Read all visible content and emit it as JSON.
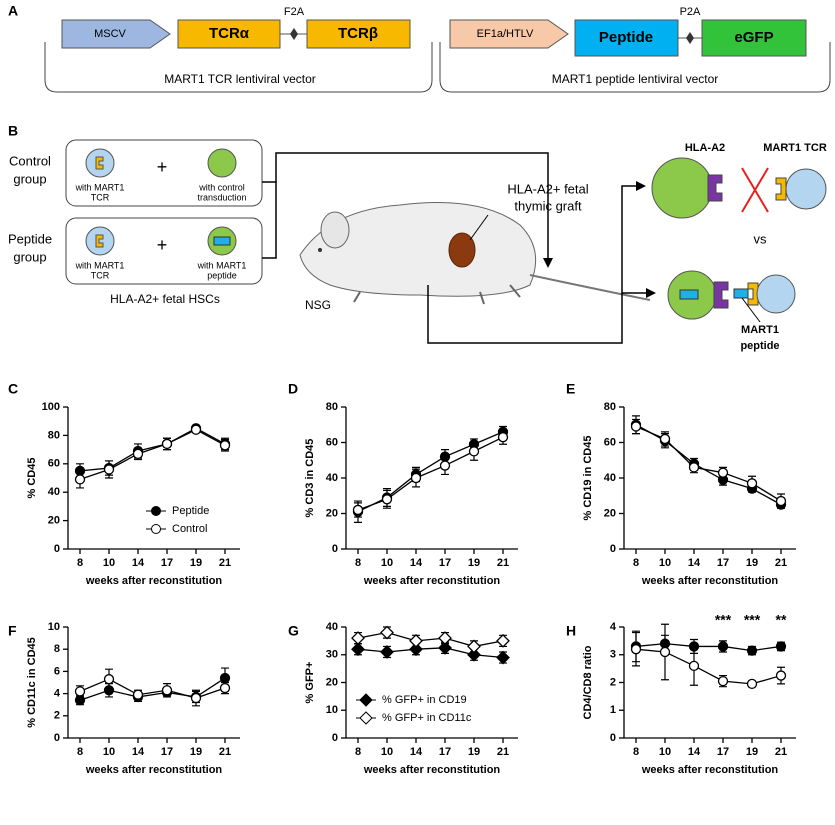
{
  "panel_labels": [
    "A",
    "B",
    "C",
    "D",
    "E",
    "F",
    "G",
    "H"
  ],
  "diagram_a": {
    "left": {
      "promoter": "MSCV",
      "gene1": "TCRα",
      "linker": "F2A",
      "gene2": "TCRβ",
      "caption": "MART1 TCR lentiviral vector"
    },
    "right": {
      "promoter": "EF1a/HTLV",
      "gene1": "Peptide",
      "linker": "P2A",
      "gene2": "eGFP",
      "caption": "MART1 peptide lentiviral vector"
    }
  },
  "diagram_b": {
    "control_group": {
      "label": [
        "Control",
        "group"
      ],
      "cell1": [
        "with MART1",
        "TCR"
      ],
      "plus": "+",
      "cell2": [
        "with control",
        "transduction"
      ]
    },
    "peptide_group": {
      "label": [
        "Peptide",
        "group"
      ],
      "cell1": [
        "with MART1",
        "TCR"
      ],
      "plus": "+",
      "cell2": [
        "with MART1",
        "peptide"
      ]
    },
    "hsc_caption": "HLA-A2+ fetal HSCs",
    "graft_label": [
      "HLA-A2+ fetal",
      "thymic graft"
    ],
    "mouse_label": "NSG",
    "hla_label": "HLA-A2",
    "tcr_label": "MART1 TCR",
    "vs": "vs",
    "peptide_label": [
      "MART1",
      "peptide"
    ]
  },
  "chart_data": [
    {
      "type": "line",
      "marker": "circle",
      "ylabel": "% CD45",
      "xlabel": "weeks after reconstitution",
      "categories": [
        "8",
        "10",
        "14",
        "17",
        "19",
        "21"
      ],
      "ylim": [
        0,
        100
      ],
      "yticks": [
        0,
        20,
        40,
        60,
        80,
        100
      ],
      "legend": "lower right",
      "series": [
        {
          "name": "Peptide",
          "color": "#000000",
          "fill": "#000000",
          "values": [
            55,
            57,
            69,
            74,
            85,
            74
          ],
          "errors": [
            5,
            5,
            5,
            4,
            2,
            4
          ]
        },
        {
          "name": "Control",
          "color": "#000000",
          "fill": "#ffffff",
          "values": [
            49,
            56,
            67,
            74,
            84,
            73
          ],
          "errors": [
            6,
            6,
            4,
            4,
            2,
            4
          ]
        }
      ]
    },
    {
      "type": "line",
      "marker": "circle",
      "ylabel": "% CD3 in CD45",
      "xlabel": "weeks after reconstitution",
      "categories": [
        "8",
        "10",
        "14",
        "17",
        "19",
        "21"
      ],
      "ylim": [
        0,
        80
      ],
      "yticks": [
        0,
        20,
        40,
        60,
        80
      ],
      "series": [
        {
          "color": "#000000",
          "fill": "#000000",
          "values": [
            21,
            29,
            42,
            52,
            59,
            66
          ],
          "errors": [
            6,
            5,
            4,
            4,
            3,
            3
          ]
        },
        {
          "color": "#000000",
          "fill": "#ffffff",
          "values": [
            22,
            28,
            40,
            47,
            55,
            63
          ],
          "errors": [
            4,
            5,
            5,
            5,
            5,
            4
          ]
        }
      ]
    },
    {
      "type": "line",
      "marker": "circle",
      "ylabel": "% CD19 in CD45",
      "xlabel": "weeks after reconstitution",
      "categories": [
        "8",
        "10",
        "14",
        "17",
        "19",
        "21"
      ],
      "ylim": [
        0,
        80
      ],
      "yticks": [
        0,
        20,
        40,
        60,
        80
      ],
      "series": [
        {
          "color": "#000000",
          "fill": "#000000",
          "values": [
            70,
            61,
            48,
            39,
            34,
            25
          ],
          "errors": [
            5,
            4,
            3,
            3,
            2,
            2
          ]
        },
        {
          "color": "#000000",
          "fill": "#ffffff",
          "values": [
            69,
            62,
            46,
            43,
            37,
            27
          ],
          "errors": [
            4,
            4,
            3,
            3,
            4,
            4
          ]
        }
      ]
    },
    {
      "type": "line",
      "marker": "circle",
      "ylabel": "% CD11c in CD45",
      "xlabel": "weeks after reconstitution",
      "categories": [
        "8",
        "10",
        "14",
        "17",
        "19",
        "21"
      ],
      "ylim": [
        0,
        10
      ],
      "yticks": [
        0,
        2,
        4,
        6,
        8,
        10
      ],
      "series": [
        {
          "color": "#000000",
          "fill": "#000000",
          "values": [
            3.4,
            4.3,
            3.7,
            4.1,
            3.7,
            5.4
          ],
          "errors": [
            0.4,
            0.6,
            0.4,
            0.4,
            0.5,
            0.9
          ]
        },
        {
          "color": "#000000",
          "fill": "#ffffff",
          "values": [
            4.2,
            5.3,
            3.9,
            4.3,
            3.6,
            4.5
          ],
          "errors": [
            0.5,
            0.9,
            0.4,
            0.6,
            0.7,
            0.5
          ]
        }
      ]
    },
    {
      "type": "line",
      "marker": "diamond",
      "ylabel": "% GFP+",
      "xlabel": "weeks after reconstitution",
      "categories": [
        "8",
        "10",
        "14",
        "17",
        "19",
        "21"
      ],
      "ylim": [
        0,
        40
      ],
      "yticks": [
        0,
        10,
        20,
        30,
        40
      ],
      "legend": "lower left",
      "series": [
        {
          "name": "% GFP+ in CD19",
          "color": "#000000",
          "fill": "#000000",
          "values": [
            32,
            31,
            32,
            32.5,
            30,
            29
          ],
          "errors": [
            2,
            2,
            2,
            2,
            2,
            2
          ]
        },
        {
          "name": "% GFP+ in CD11c",
          "color": "#000000",
          "fill": "#ffffff",
          "values": [
            36,
            38,
            35,
            36,
            33,
            35
          ],
          "errors": [
            2,
            2,
            2,
            2,
            2,
            2
          ]
        }
      ]
    },
    {
      "type": "line",
      "marker": "circle",
      "ylabel": "CD4/CD8 ratio",
      "xlabel": "weeks after reconstitution",
      "categories": [
        "8",
        "10",
        "14",
        "17",
        "19",
        "21"
      ],
      "ylim": [
        0,
        4
      ],
      "yticks": [
        0,
        1,
        2,
        3,
        4
      ],
      "annotations": [
        "***",
        "***",
        "**"
      ],
      "series": [
        {
          "color": "#000000",
          "fill": "#000000",
          "values": [
            3.3,
            3.4,
            3.3,
            3.3,
            3.15,
            3.3
          ],
          "errors": [
            0.55,
            0.3,
            0.25,
            0.2,
            0.15,
            0.15
          ]
        },
        {
          "color": "#000000",
          "fill": "#ffffff",
          "values": [
            3.2,
            3.1,
            2.6,
            2.05,
            1.95,
            2.25
          ],
          "errors": [
            0.6,
            1.0,
            0.7,
            0.2,
            0.1,
            0.3
          ]
        }
      ]
    }
  ]
}
